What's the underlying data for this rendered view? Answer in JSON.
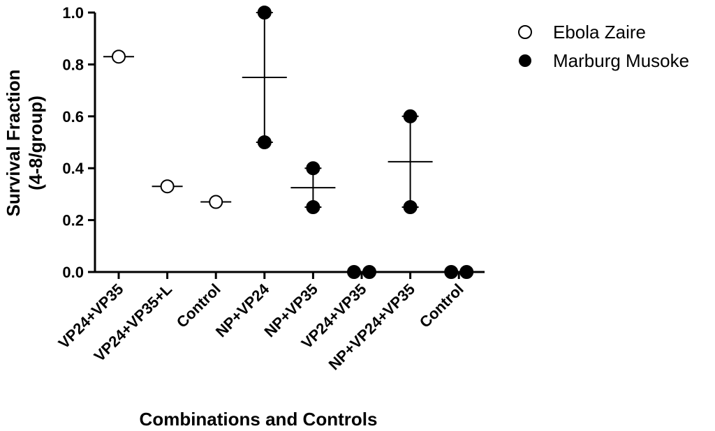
{
  "chart_data": {
    "type": "scatter",
    "title": "",
    "xlabel": "Combinations and Controls",
    "ylabel_lines": [
      "Survival Fraction",
      "(4-8/group)"
    ],
    "ylim": [
      0,
      1.0
    ],
    "yticks": [
      0.0,
      0.2,
      0.4,
      0.6,
      0.8,
      1.0
    ],
    "ytick_labels": [
      "0.0",
      "0.2",
      "0.4",
      "0.6",
      "0.8",
      "1.0"
    ],
    "categories": [
      "VP24+VP35",
      "VP24+VP35+L",
      "Control",
      "NP+VP24",
      "NP+VP35",
      "VP24+VP35",
      "NP+VP24+VP35",
      "Control"
    ],
    "legend_position": "top-right",
    "series": [
      {
        "name": "Ebola Zaire",
        "marker": "open-circle",
        "groups": [
          {
            "category_index": 0,
            "points": [
              0.83
            ],
            "mean": 0.83
          },
          {
            "category_index": 1,
            "points": [
              0.33
            ],
            "mean": 0.33
          },
          {
            "category_index": 2,
            "points": [
              0.27
            ],
            "mean": 0.27
          }
        ]
      },
      {
        "name": "Marburg Musoke",
        "marker": "filled-circle",
        "groups": [
          {
            "category_index": 3,
            "points": [
              1.0,
              0.5
            ],
            "mean": 0.75,
            "range": [
              0.5,
              1.0
            ]
          },
          {
            "category_index": 4,
            "points": [
              0.4,
              0.25
            ],
            "mean": 0.325,
            "range": [
              0.25,
              0.4
            ]
          },
          {
            "category_index": 5,
            "points": [
              0.0,
              0.0
            ],
            "mean": 0.0
          },
          {
            "category_index": 6,
            "points": [
              0.6,
              0.25
            ],
            "mean": 0.425,
            "range": [
              0.25,
              0.6
            ]
          },
          {
            "category_index": 7,
            "points": [
              0.0,
              0.0
            ],
            "mean": 0.0
          }
        ]
      }
    ]
  }
}
